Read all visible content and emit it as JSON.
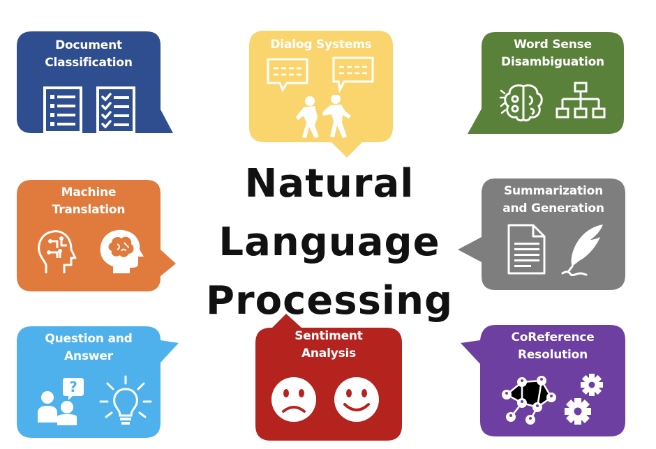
{
  "title": {
    "line1": "Natural",
    "line2": "Language",
    "line3": "Processing"
  },
  "bubbles": {
    "document_classification": {
      "line1": "Document",
      "line2": "Classification",
      "color": "#2F4E8F",
      "icons": [
        "list-document-icon",
        "checklist-document-icon"
      ]
    },
    "dialog_systems": {
      "line1": "Dialog Systems",
      "color": "#FAD56E",
      "icons": [
        "speech-bubble-icon",
        "speech-bubble-icon",
        "two-people-talking-icon"
      ]
    },
    "word_sense": {
      "line1": "Word Sense",
      "line2": "Disambiguation",
      "color": "#5A813A",
      "icons": [
        "brain-icon",
        "hierarchy-icon"
      ]
    },
    "machine_translation": {
      "line1": "Machine",
      "line2": "Translation",
      "color": "#E07B3D",
      "icons": [
        "circuit-head-icon",
        "brain-head-icon"
      ]
    },
    "summarization": {
      "line1": "Summarization",
      "line2": "and Generation",
      "color": "#7E7E7E",
      "icons": [
        "document-icon",
        "feather-pen-icon"
      ]
    },
    "question_answer": {
      "line1": "Question and",
      "line2": "Answer",
      "color": "#4EB1EB",
      "icons": [
        "people-question-icon",
        "lightbulb-icon"
      ]
    },
    "sentiment": {
      "line1": "Sentiment",
      "line2": "Analysis",
      "color": "#B5231F",
      "icons": [
        "sad-face-icon",
        "happy-face-icon"
      ]
    },
    "coreference": {
      "line1": "CoReference",
      "line2": "Resolution",
      "color": "#6D3FA0",
      "icons": [
        "network-icon",
        "gears-icon"
      ]
    }
  }
}
